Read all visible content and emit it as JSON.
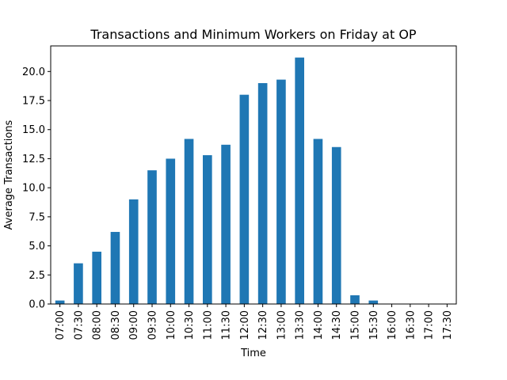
{
  "chart_data": {
    "type": "bar",
    "title": "Transactions and Minimum Workers on Friday at OP",
    "xlabel": "Time",
    "ylabel": "Average Transactions",
    "categories": [
      "07:00",
      "07:30",
      "08:00",
      "08:30",
      "09:00",
      "09:30",
      "10:00",
      "10:30",
      "11:00",
      "11:30",
      "12:00",
      "12:30",
      "13:00",
      "13:30",
      "14:00",
      "14:30",
      "15:00",
      "15:30",
      "16:00",
      "16:30",
      "17:00",
      "17:30"
    ],
    "values": [
      0.3,
      3.5,
      4.5,
      6.2,
      9.0,
      11.5,
      12.5,
      14.2,
      12.8,
      13.7,
      18.0,
      19.0,
      19.3,
      21.2,
      14.2,
      13.5,
      0.75,
      0.3,
      0,
      0,
      0,
      0
    ],
    "yticks": [
      "0.0",
      "2.5",
      "5.0",
      "7.5",
      "10.0",
      "12.5",
      "15.0",
      "17.5",
      "20.0"
    ],
    "ylim": [
      0,
      22.2
    ],
    "bar_color": "#1f77b4",
    "grid": false,
    "legend": "none"
  }
}
